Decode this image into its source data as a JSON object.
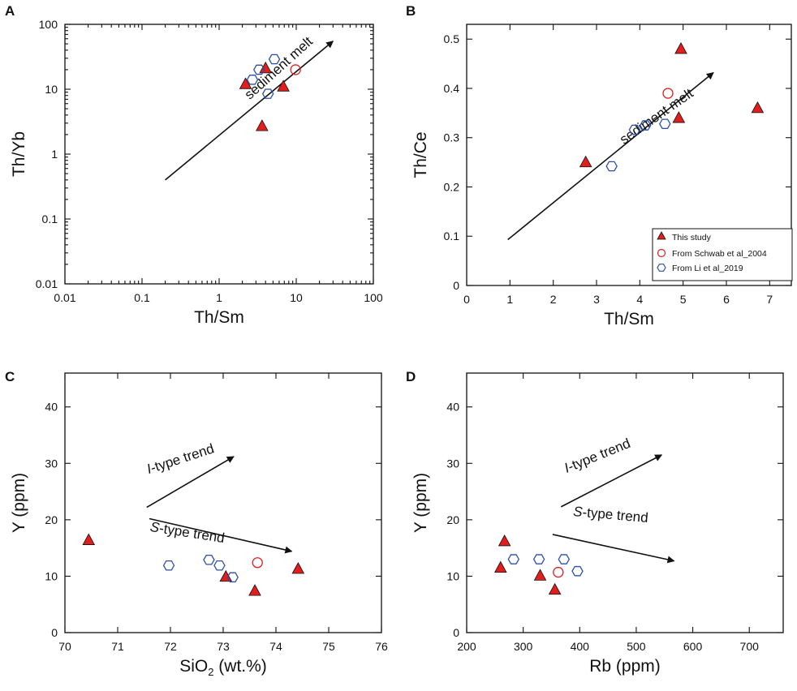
{
  "colors": {
    "this_study": "#e01e1e",
    "schwab": "#e01e1e",
    "li": "#2b4fa8",
    "axis": "#111111"
  },
  "legend": {
    "entries": [
      "This study",
      "From Schwab et al_2004",
      "From Li et al_2019"
    ]
  },
  "chart_data": [
    {
      "panel": "A",
      "type": "scatter",
      "xlabel": "Th/Sm",
      "ylabel": "Th/Yb",
      "xscale": "log",
      "yscale": "log",
      "xlim": [
        0.01,
        100
      ],
      "ylim": [
        0.01,
        100
      ],
      "xticks": [
        0.01,
        0.1,
        1,
        10,
        100
      ],
      "xtick_labels": [
        "0.01",
        "0.1",
        "1",
        "10",
        "100"
      ],
      "yticks": [
        0.01,
        0.1,
        1,
        10,
        100
      ],
      "ytick_labels": [
        "0.01",
        "0.1",
        "1",
        "10",
        "100"
      ],
      "series": [
        {
          "name": "This study",
          "marker": "triangle",
          "points": [
            [
              2.2,
              12
            ],
            [
              4.0,
              21
            ],
            [
              6.8,
              11
            ],
            [
              3.6,
              2.7
            ]
          ]
        },
        {
          "name": "From Schwab et al_2004",
          "marker": "circle",
          "points": [
            [
              9.8,
              20
            ]
          ]
        },
        {
          "name": "From Li et al_2019",
          "marker": "hexagon",
          "points": [
            [
              2.7,
              14
            ],
            [
              3.3,
              20
            ],
            [
              5.2,
              29
            ],
            [
              4.3,
              8.5
            ]
          ]
        }
      ],
      "annotations": [
        {
          "text": "sediment melt",
          "arrow_from": [
            0.2,
            0.4
          ],
          "arrow_to": [
            30,
            55
          ]
        }
      ]
    },
    {
      "panel": "B",
      "type": "scatter",
      "xlabel": "Th/Sm",
      "ylabel": "Th/Ce",
      "xlim": [
        0,
        7.5
      ],
      "ylim": [
        0,
        0.53
      ],
      "xticks": [
        0,
        1,
        2,
        3,
        4,
        5,
        6,
        7
      ],
      "xtick_labels": [
        "0",
        "1",
        "2",
        "3",
        "4",
        "5",
        "6",
        "7"
      ],
      "yticks": [
        0,
        0.1,
        0.2,
        0.3,
        0.4,
        0.5
      ],
      "ytick_labels": [
        "0",
        "0.1",
        "0.2",
        "0.3",
        "0.4",
        "0.5"
      ],
      "series": [
        {
          "name": "This study",
          "marker": "triangle",
          "points": [
            [
              2.75,
              0.25
            ],
            [
              4.95,
              0.48
            ],
            [
              4.9,
              0.34
            ],
            [
              6.72,
              0.36
            ]
          ]
        },
        {
          "name": "From Schwab et al_2004",
          "marker": "circle",
          "points": [
            [
              4.65,
              0.39
            ]
          ]
        },
        {
          "name": "From Li et al_2019",
          "marker": "hexagon",
          "points": [
            [
              3.35,
              0.242
            ],
            [
              3.88,
              0.316
            ],
            [
              4.13,
              0.325
            ],
            [
              4.58,
              0.328
            ]
          ]
        }
      ],
      "annotations": [
        {
          "text": "sediment melt",
          "arrow_from": [
            0.95,
            0.093
          ],
          "arrow_to": [
            5.7,
            0.432
          ]
        }
      ],
      "legend_position": "bottom-right"
    },
    {
      "panel": "C",
      "type": "scatter",
      "xlabel": "SiO",
      "xlabel_sub": "2",
      "xlabel_rest": " (wt.%)",
      "ylabel": "Y (ppm)",
      "xlim": [
        70,
        76
      ],
      "ylim": [
        0,
        46
      ],
      "xticks": [
        70,
        71,
        72,
        73,
        74,
        75,
        76
      ],
      "xtick_labels": [
        "70",
        "71",
        "72",
        "73",
        "74",
        "75",
        "76"
      ],
      "yticks": [
        0,
        10,
        20,
        30,
        40
      ],
      "ytick_labels": [
        "0",
        "10",
        "20",
        "30",
        "40"
      ],
      "series": [
        {
          "name": "This study",
          "marker": "triangle",
          "points": [
            [
              70.45,
              16.4
            ],
            [
              73.05,
              9.9
            ],
            [
              73.6,
              7.4
            ],
            [
              74.42,
              11.3
            ]
          ]
        },
        {
          "name": "From Schwab et al_2004",
          "marker": "circle",
          "points": [
            [
              73.65,
              12.4
            ]
          ]
        },
        {
          "name": "From Li et al_2019",
          "marker": "hexagon",
          "points": [
            [
              71.97,
              11.9
            ],
            [
              72.73,
              12.9
            ],
            [
              72.93,
              11.9
            ],
            [
              73.18,
              9.8
            ]
          ]
        }
      ],
      "annotations": [
        {
          "text": "I-type trend",
          "arrow_from": [
            71.55,
            22.2
          ],
          "arrow_to": [
            73.2,
            31.2
          ]
        },
        {
          "text": "S-type trend",
          "arrow_from": [
            71.6,
            20.2
          ],
          "arrow_to": [
            74.3,
            14.4
          ]
        }
      ]
    },
    {
      "panel": "D",
      "type": "scatter",
      "xlabel": "Rb (ppm)",
      "ylabel": "Y (ppm)",
      "xlim": [
        200,
        760
      ],
      "ylim": [
        0,
        46
      ],
      "xticks": [
        200,
        300,
        400,
        500,
        600,
        700
      ],
      "xtick_labels": [
        "200",
        "300",
        "400",
        "500",
        "600",
        "700"
      ],
      "yticks": [
        0,
        10,
        20,
        30,
        40
      ],
      "ytick_labels": [
        "0",
        "10",
        "20",
        "30",
        "40"
      ],
      "series": [
        {
          "name": "This study",
          "marker": "triangle",
          "points": [
            [
              260,
              11.5
            ],
            [
              267,
              16.2
            ],
            [
              330,
              10.1
            ],
            [
              356,
              7.6
            ]
          ]
        },
        {
          "name": "From Schwab et al_2004",
          "marker": "circle",
          "points": [
            [
              362,
              10.7
            ]
          ]
        },
        {
          "name": "From Li et al_2019",
          "marker": "hexagon",
          "points": [
            [
              283,
              13.0
            ],
            [
              328,
              13.0
            ],
            [
              372,
              13.0
            ],
            [
              396,
              10.9
            ]
          ]
        }
      ],
      "annotations": [
        {
          "text": "I-type trend",
          "arrow_from": [
            367,
            22.3
          ],
          "arrow_to": [
            545,
            31.5
          ]
        },
        {
          "text": "S-type trend",
          "arrow_from": [
            352,
            17.4
          ],
          "arrow_to": [
            567,
            12.7
          ]
        }
      ]
    }
  ]
}
